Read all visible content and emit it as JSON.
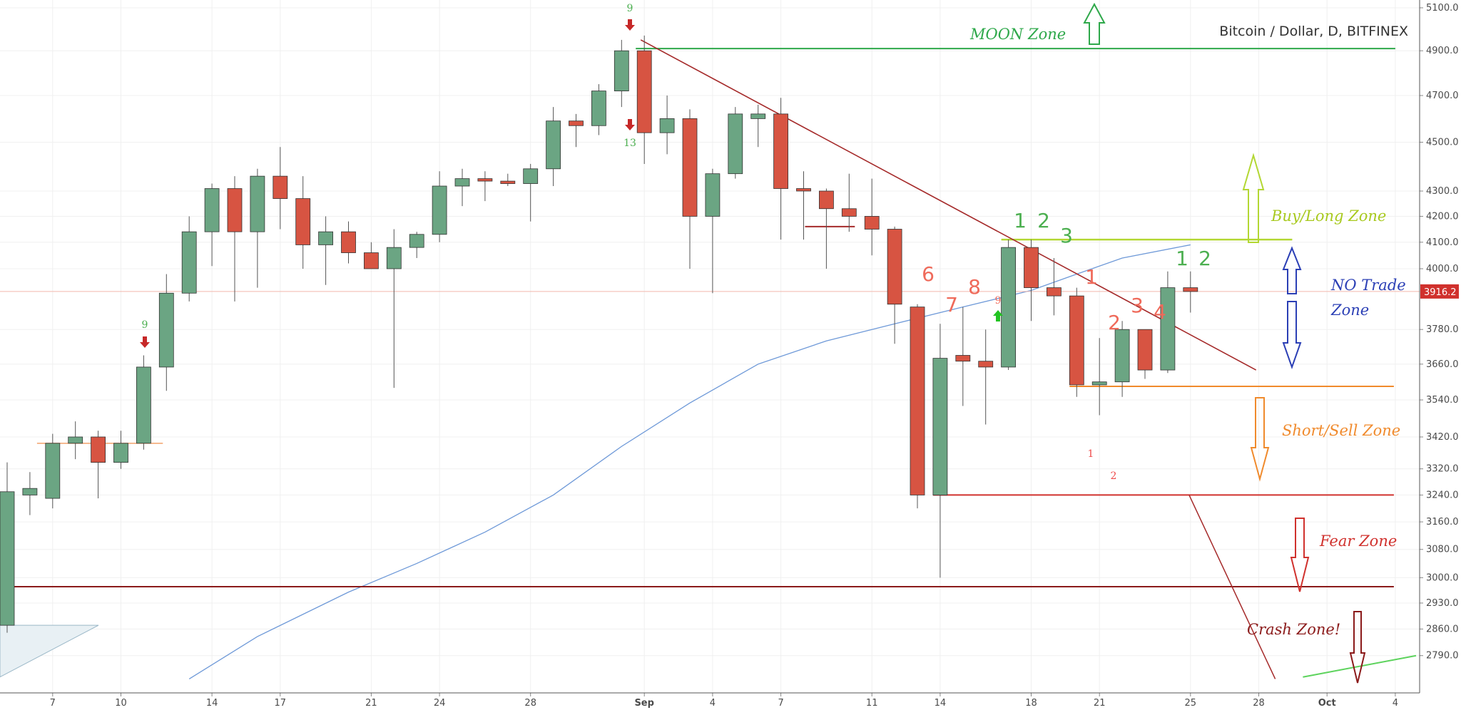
{
  "chart_data": {
    "type": "candlestick",
    "title": "Bitcoin / Dollar, D, BITFINEX",
    "last_price_label": "3916.2",
    "y_scale": "log",
    "ylim": [
      2720,
      5110
    ],
    "y_ticks": [
      "5100.0",
      "4900.0",
      "4700.0",
      "4500.0",
      "4300.0",
      "4200.0",
      "4100.0",
      "4000.0",
      "3780.0",
      "3660.0",
      "3540.0",
      "3420.0",
      "3320.0",
      "3240.0",
      "3160.0",
      "3080.0",
      "3000.0",
      "2930.0",
      "2860.0",
      "2790.0"
    ],
    "x_ticks": [
      {
        "label": "7",
        "day": 6
      },
      {
        "label": "10",
        "day": 9
      },
      {
        "label": "14",
        "day": 13
      },
      {
        "label": "17",
        "day": 16
      },
      {
        "label": "21",
        "day": 20
      },
      {
        "label": "24",
        "day": 23
      },
      {
        "label": "28",
        "day": 27
      },
      {
        "label": "Sep",
        "day": 32
      },
      {
        "label": "4",
        "day": 35
      },
      {
        "label": "7",
        "day": 38
      },
      {
        "label": "11",
        "day": 42
      },
      {
        "label": "14",
        "day": 45
      },
      {
        "label": "18",
        "day": 49
      },
      {
        "label": "21",
        "day": 52
      },
      {
        "label": "25",
        "day": 56
      },
      {
        "label": "28",
        "day": 59
      },
      {
        "label": "Oct",
        "day": 62
      },
      {
        "label": "4",
        "day": 65
      }
    ],
    "candles": [
      {
        "day": 4,
        "o": 2870,
        "h": 3340,
        "l": 2850,
        "c": 3250
      },
      {
        "day": 5,
        "o": 3240,
        "h": 3310,
        "l": 3180,
        "c": 3260
      },
      {
        "day": 6,
        "o": 3230,
        "h": 3430,
        "l": 3200,
        "c": 3400
      },
      {
        "day": 7,
        "o": 3400,
        "h": 3470,
        "l": 3350,
        "c": 3420
      },
      {
        "day": 8,
        "o": 3420,
        "h": 3440,
        "l": 3230,
        "c": 3340
      },
      {
        "day": 9,
        "o": 3340,
        "h": 3440,
        "l": 3320,
        "c": 3400
      },
      {
        "day": 10,
        "o": 3400,
        "h": 3690,
        "l": 3380,
        "c": 3650
      },
      {
        "day": 11,
        "o": 3650,
        "h": 3980,
        "l": 3570,
        "c": 3910
      },
      {
        "day": 12,
        "o": 3910,
        "h": 4200,
        "l": 3880,
        "c": 4140
      },
      {
        "day": 13,
        "o": 4140,
        "h": 4330,
        "l": 4010,
        "c": 4310
      },
      {
        "day": 14,
        "o": 4310,
        "h": 4360,
        "l": 3880,
        "c": 4140
      },
      {
        "day": 15,
        "o": 4140,
        "h": 4390,
        "l": 3930,
        "c": 4360
      },
      {
        "day": 16,
        "o": 4360,
        "h": 4480,
        "l": 4150,
        "c": 4270
      },
      {
        "day": 17,
        "o": 4270,
        "h": 4360,
        "l": 4000,
        "c": 4090
      },
      {
        "day": 18,
        "o": 4090,
        "h": 4200,
        "l": 3940,
        "c": 4140
      },
      {
        "day": 19,
        "o": 4140,
        "h": 4180,
        "l": 4020,
        "c": 4060
      },
      {
        "day": 20,
        "o": 4060,
        "h": 4100,
        "l": 4020,
        "c": 4000
      },
      {
        "day": 21,
        "o": 4000,
        "h": 4150,
        "l": 3580,
        "c": 4080
      },
      {
        "day": 22,
        "o": 4080,
        "h": 4140,
        "l": 4040,
        "c": 4130
      },
      {
        "day": 23,
        "o": 4130,
        "h": 4380,
        "l": 4100,
        "c": 4320
      },
      {
        "day": 24,
        "o": 4320,
        "h": 4390,
        "l": 4240,
        "c": 4350
      },
      {
        "day": 25,
        "o": 4350,
        "h": 4380,
        "l": 4260,
        "c": 4340
      },
      {
        "day": 26,
        "o": 4340,
        "h": 4370,
        "l": 4320,
        "c": 4330
      },
      {
        "day": 27,
        "o": 4330,
        "h": 4410,
        "l": 4180,
        "c": 4390
      },
      {
        "day": 28,
        "o": 4390,
        "h": 4650,
        "l": 4320,
        "c": 4590
      },
      {
        "day": 29,
        "o": 4590,
        "h": 4620,
        "l": 4480,
        "c": 4570
      },
      {
        "day": 30,
        "o": 4570,
        "h": 4750,
        "l": 4530,
        "c": 4720
      },
      {
        "day": 31,
        "o": 4720,
        "h": 4950,
        "l": 4650,
        "c": 4900
      },
      {
        "day": 32,
        "o": 4900,
        "h": 4970,
        "l": 4410,
        "c": 4540
      },
      {
        "day": 33,
        "o": 4540,
        "h": 4700,
        "l": 4450,
        "c": 4600
      },
      {
        "day": 34,
        "o": 4600,
        "h": 4640,
        "l": 4000,
        "c": 4200
      },
      {
        "day": 35,
        "o": 4200,
        "h": 4390,
        "l": 3910,
        "c": 4370
      },
      {
        "day": 36,
        "o": 4370,
        "h": 4650,
        "l": 4350,
        "c": 4620
      },
      {
        "day": 37,
        "o": 4600,
        "h": 4660,
        "l": 4480,
        "c": 4620
      },
      {
        "day": 38,
        "o": 4620,
        "h": 4690,
        "l": 4110,
        "c": 4310
      },
      {
        "day": 39,
        "o": 4310,
        "h": 4380,
        "l": 4110,
        "c": 4300
      },
      {
        "day": 40,
        "o": 4300,
        "h": 4310,
        "l": 4000,
        "c": 4230
      },
      {
        "day": 41,
        "o": 4230,
        "h": 4370,
        "l": 4140,
        "c": 4200
      },
      {
        "day": 42,
        "o": 4200,
        "h": 4350,
        "l": 4050,
        "c": 4150
      },
      {
        "day": 43,
        "o": 4150,
        "h": 4160,
        "l": 3730,
        "c": 3870
      },
      {
        "day": 44,
        "o": 3860,
        "h": 3870,
        "l": 3200,
        "c": 3240
      },
      {
        "day": 45,
        "o": 3240,
        "h": 3800,
        "l": 3000,
        "c": 3680
      },
      {
        "day": 46,
        "o": 3690,
        "h": 3860,
        "l": 3520,
        "c": 3670
      },
      {
        "day": 47,
        "o": 3670,
        "h": 3780,
        "l": 3460,
        "c": 3650
      },
      {
        "day": 48,
        "o": 3650,
        "h": 4110,
        "l": 3640,
        "c": 4080
      },
      {
        "day": 49,
        "o": 4080,
        "h": 4110,
        "l": 3810,
        "c": 3930
      },
      {
        "day": 50,
        "o": 3930,
        "h": 4040,
        "l": 3830,
        "c": 3900
      },
      {
        "day": 51,
        "o": 3900,
        "h": 3930,
        "l": 3550,
        "c": 3590
      },
      {
        "day": 52,
        "o": 3590,
        "h": 3750,
        "l": 3490,
        "c": 3600
      },
      {
        "day": 53,
        "o": 3600,
        "h": 3810,
        "l": 3550,
        "c": 3780
      },
      {
        "day": 54,
        "o": 3780,
        "h": 3780,
        "l": 3610,
        "c": 3640
      },
      {
        "day": 55,
        "o": 3640,
        "h": 3990,
        "l": 3630,
        "c": 3930
      },
      {
        "day": 56,
        "o": 3930,
        "h": 3990,
        "l": 3840,
        "c": 3916
      }
    ],
    "moving_average": [
      {
        "day": 12,
        "v": 2730
      },
      {
        "day": 15,
        "v": 2840
      },
      {
        "day": 19,
        "v": 2960
      },
      {
        "day": 22,
        "v": 3040
      },
      {
        "day": 25,
        "v": 3130
      },
      {
        "day": 28,
        "v": 3240
      },
      {
        "day": 31,
        "v": 3390
      },
      {
        "day": 34,
        "v": 3530
      },
      {
        "day": 37,
        "v": 3660
      },
      {
        "day": 40,
        "v": 3740
      },
      {
        "day": 43,
        "v": 3800
      },
      {
        "day": 46,
        "v": 3860
      },
      {
        "day": 49,
        "v": 3920
      },
      {
        "day": 51,
        "v": 3980
      },
      {
        "day": 53,
        "v": 4040
      },
      {
        "day": 56,
        "v": 4090
      }
    ],
    "annotations": {
      "zones": [
        "MOON Zone",
        "Buy/Long Zone",
        "NO Trade",
        "Zone",
        "Short/Sell Zone",
        "Fear Zone",
        "Crash Zone!"
      ],
      "td_counts_green": [
        "1",
        "2",
        "3",
        "1",
        "2"
      ],
      "td_counts_red": [
        "6",
        "7",
        "8",
        "1",
        "2",
        "3",
        "4"
      ],
      "td_small_labels": [
        "9",
        "13",
        "9",
        "9",
        "1",
        "2"
      ]
    },
    "lines": {
      "moon": 4910,
      "buy": 4110,
      "last": 3916.2,
      "short": 3585,
      "fear": 3240,
      "crash": 2975,
      "swing_orange": 3400
    },
    "colors": {
      "up": "#6ba583",
      "down": "#d75442",
      "ma": "#6e99d8",
      "moon": "#2ea84a",
      "buy": "#b3d733",
      "short": "#f08a2c",
      "fear": "#d0312d",
      "crash": "#8b1a1a",
      "notrade": "#2b3fb5"
    }
  }
}
